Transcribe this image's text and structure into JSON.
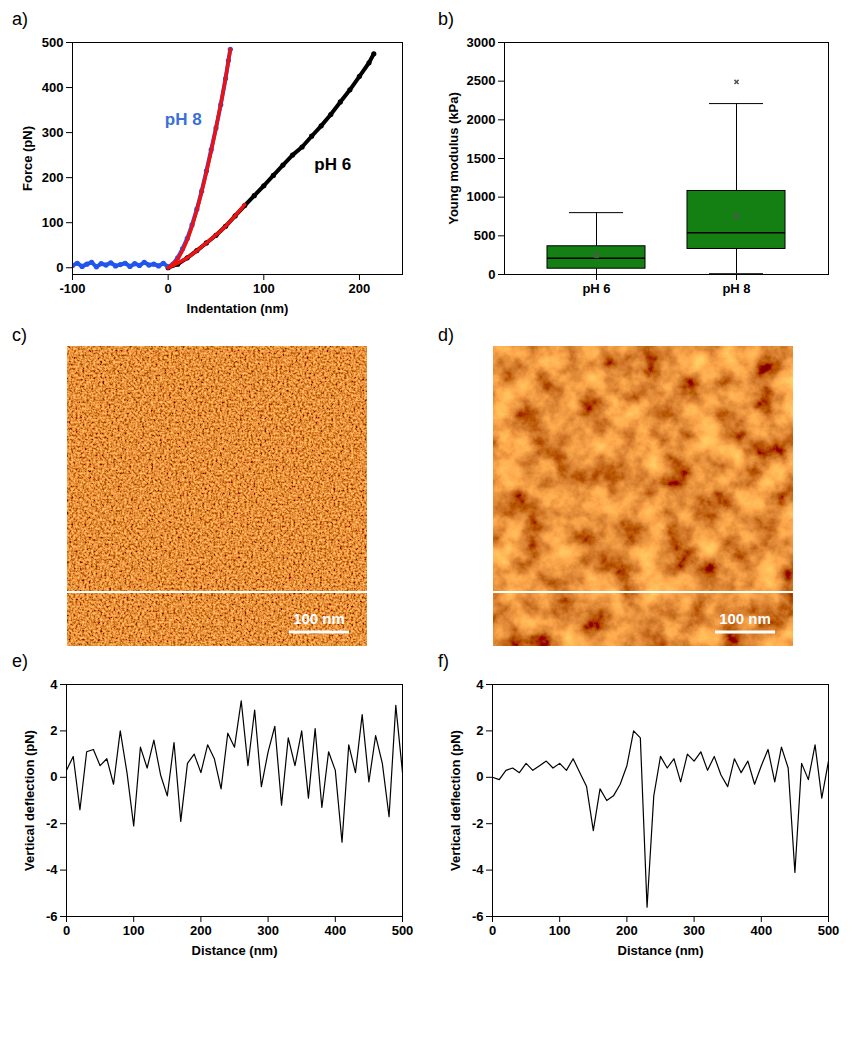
{
  "chart_data": [
    {
      "panel": "a)",
      "type": "scatter",
      "x_label": "Indentation (nm)",
      "y_label": "Force (pN)",
      "xlim": [
        -100,
        245
      ],
      "xticks": [
        -100,
        0,
        100,
        200
      ],
      "ylim": [
        -15,
        500
      ],
      "yticks": [
        0,
        100,
        200,
        300,
        400,
        500
      ],
      "series": [
        {
          "color": "#000000",
          "marker": "dot",
          "x": [
            0,
            10,
            20,
            30,
            40,
            50,
            60,
            70,
            80,
            90,
            100,
            110,
            120,
            130,
            140,
            150,
            160,
            170,
            180,
            190,
            200,
            210,
            215
          ],
          "values": [
            0,
            8,
            22,
            38,
            55,
            72,
            92,
            115,
            138,
            160,
            182,
            205,
            228,
            250,
            268,
            292,
            315,
            340,
            368,
            395,
            425,
            455,
            475
          ]
        },
        {
          "color": "#2255ee",
          "marker": "dot",
          "x": [
            -100,
            -95,
            -90,
            -85,
            -80,
            -75,
            -70,
            -65,
            -60,
            -55,
            -50,
            -45,
            -40,
            -35,
            -30,
            -25,
            -20,
            -15,
            -10,
            -5,
            0,
            5,
            10,
            15,
            20,
            25,
            30,
            35,
            40,
            45,
            50,
            55,
            60,
            63,
            65
          ],
          "values": [
            5,
            10,
            3,
            8,
            12,
            2,
            9,
            6,
            11,
            4,
            7,
            10,
            3,
            9,
            5,
            12,
            6,
            8,
            4,
            10,
            2,
            8,
            22,
            42,
            65,
            95,
            130,
            170,
            215,
            262,
            310,
            362,
            420,
            460,
            485
          ]
        },
        {
          "color": "#ee1111",
          "type": "line",
          "line_style": "solid",
          "x": [
            0,
            10,
            20,
            30,
            40,
            50,
            60,
            65
          ],
          "values": [
            0,
            20,
            62,
            128,
            212,
            310,
            420,
            485
          ]
        },
        {
          "color": "#ee1111",
          "type": "line",
          "line_style": "solid",
          "x": [
            0,
            20,
            40,
            60,
            80
          ],
          "values": [
            0,
            22,
            55,
            92,
            140
          ]
        }
      ],
      "annotations": [
        {
          "text": "pH 8",
          "x": 35,
          "y": 330,
          "color": "#3a6fd8"
        },
        {
          "text": "pH 6",
          "x": 172,
          "y": 230,
          "color": "#000000"
        }
      ]
    },
    {
      "panel": "b)",
      "type": "box",
      "y_label": "Young modulus (kPa)",
      "categories": [
        "pH 6",
        "pH 8"
      ],
      "whisker_low": [
        0,
        10
      ],
      "q1": [
        75,
        330
      ],
      "median": [
        210,
        540
      ],
      "q3": [
        365,
        1080
      ],
      "whisker_high": [
        800,
        2210
      ],
      "mean": [
        240,
        760
      ],
      "outliers": [
        [],
        [
          2490
        ]
      ],
      "color": "#148014",
      "ylim": [
        0,
        3000
      ],
      "yticks": [
        0,
        500,
        1000,
        1500,
        2000,
        2500,
        3000
      ]
    },
    {
      "panel": "c)",
      "type": "image",
      "xlim": [
        0,
        500
      ],
      "scale_bar": {
        "value": 100,
        "label": "100 nm"
      }
    },
    {
      "panel": "d)",
      "type": "image",
      "xlim": [
        0,
        500
      ],
      "scale_bar": {
        "value": 100,
        "label": "100 nm"
      }
    },
    {
      "panel": "e)",
      "type": "line",
      "x_label": "Distance (nm)",
      "y_label": "Vertical deflection (pN)",
      "xlim": [
        0,
        500
      ],
      "xticks": [
        0,
        100,
        200,
        300,
        400,
        500
      ],
      "ylim": [
        -6,
        4
      ],
      "yticks": [
        -6,
        -4,
        -2,
        0,
        2,
        4
      ],
      "color": "#000000",
      "x": [
        0,
        10,
        20,
        30,
        40,
        50,
        60,
        70,
        80,
        90,
        100,
        110,
        120,
        130,
        140,
        150,
        160,
        170,
        180,
        190,
        200,
        210,
        220,
        230,
        240,
        250,
        260,
        270,
        280,
        290,
        300,
        310,
        320,
        330,
        340,
        350,
        360,
        370,
        380,
        390,
        400,
        410,
        420,
        430,
        440,
        450,
        460,
        470,
        480,
        490,
        500
      ],
      "values": [
        0.3,
        0.9,
        -1.4,
        1.1,
        1.2,
        0.5,
        0.8,
        -0.3,
        2.0,
        0.2,
        -2.1,
        1.3,
        0.4,
        1.6,
        0.1,
        -0.8,
        1.5,
        -1.9,
        0.6,
        1.0,
        0.2,
        1.4,
        0.8,
        -0.5,
        1.9,
        1.3,
        3.3,
        0.5,
        2.9,
        -0.4,
        1.1,
        2.2,
        -1.2,
        1.7,
        0.5,
        2.0,
        -0.9,
        2.1,
        -1.3,
        1.1,
        0.3,
        -2.8,
        1.4,
        0.2,
        2.7,
        -0.2,
        1.8,
        0.6,
        -1.7,
        3.1,
        0.2
      ]
    },
    {
      "panel": "f)",
      "type": "line",
      "x_label": "Distance (nm)",
      "y_label": "Vertical deflection (pN)",
      "xlim": [
        0,
        500
      ],
      "xticks": [
        0,
        100,
        200,
        300,
        400,
        500
      ],
      "ylim": [
        -6,
        4
      ],
      "yticks": [
        -6,
        -4,
        -2,
        0,
        2,
        4
      ],
      "color": "#000000",
      "x": [
        0,
        10,
        20,
        30,
        40,
        50,
        60,
        70,
        80,
        90,
        100,
        110,
        120,
        130,
        140,
        150,
        160,
        170,
        180,
        190,
        200,
        210,
        220,
        230,
        240,
        250,
        260,
        270,
        280,
        290,
        300,
        310,
        320,
        330,
        340,
        350,
        360,
        370,
        380,
        390,
        400,
        410,
        420,
        430,
        440,
        450,
        460,
        470,
        480,
        490,
        500
      ],
      "values": [
        0,
        -0.1,
        0.3,
        0.4,
        0.2,
        0.6,
        0.3,
        0.5,
        0.7,
        0.4,
        0.6,
        0.3,
        0.8,
        0.2,
        -0.4,
        -2.3,
        -0.5,
        -1.0,
        -0.8,
        -0.3,
        0.5,
        2.0,
        1.7,
        -5.6,
        -0.8,
        0.9,
        0.4,
        0.8,
        -0.2,
        1.0,
        0.7,
        1.1,
        0.3,
        0.9,
        0.1,
        -0.4,
        0.8,
        0.2,
        0.7,
        -0.3,
        0.5,
        1.2,
        -0.2,
        1.3,
        0.4,
        -4.1,
        0.6,
        -0.1,
        1.4,
        -0.9,
        0.7
      ]
    }
  ]
}
